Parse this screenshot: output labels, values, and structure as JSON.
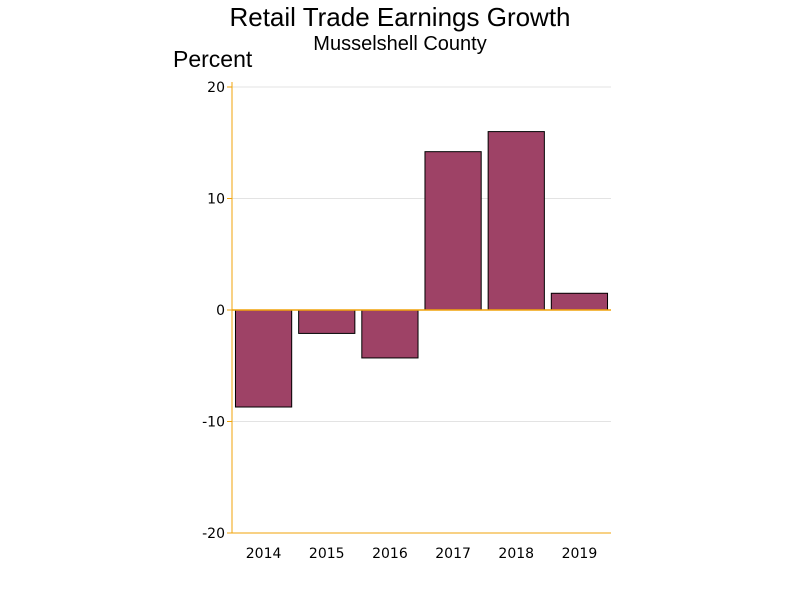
{
  "chart_data": {
    "type": "bar",
    "title": "Retail Trade Earnings Growth",
    "subtitle": "Musselshell County",
    "ylabel": "Percent",
    "xlabel": "",
    "categories": [
      "2014",
      "2015",
      "2016",
      "2017",
      "2018",
      "2019"
    ],
    "values": [
      -8.7,
      -2.1,
      -4.3,
      14.2,
      16.0,
      1.5
    ],
    "ylim": [
      -20,
      20
    ],
    "yticks": [
      "20",
      "10",
      "0",
      "-10",
      "-20"
    ],
    "grid": true,
    "legend": "none",
    "colors": {
      "bar_fill": "#9e4266",
      "bar_stroke": "#000000",
      "axis": "#f0a30a",
      "grid": "#e3e3e3"
    }
  }
}
